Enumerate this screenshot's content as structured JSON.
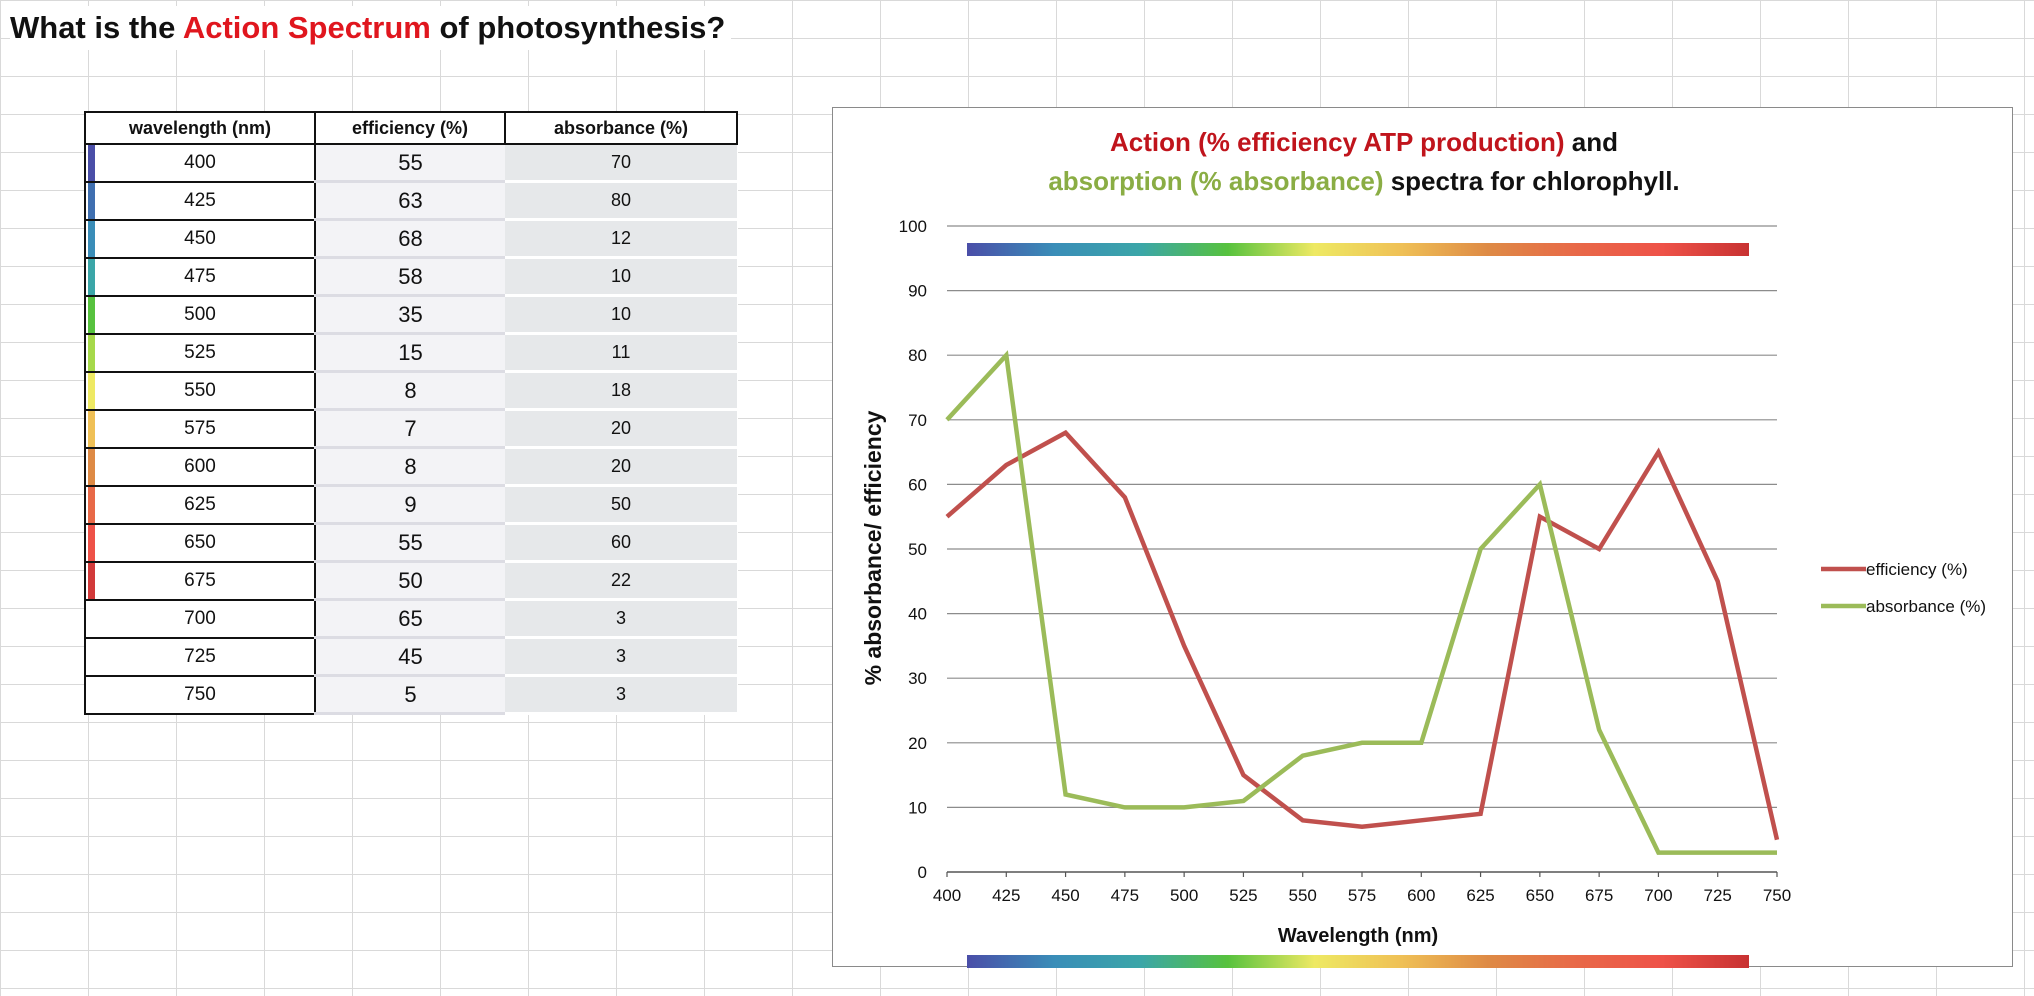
{
  "sheet": {
    "title_part1": "What is the ",
    "title_highlight": "Action Spectrum",
    "title_part2": " of photosynthesis?",
    "highlight_color": "#e0161e"
  },
  "table": {
    "headers": [
      "wavelength (nm)",
      "efficiency (%)",
      "absorbance (%)"
    ],
    "rows": [
      {
        "wavelength": "400",
        "efficiency": "55",
        "absorbance": "70",
        "strip_color": "#4a4ea8"
      },
      {
        "wavelength": "425",
        "efficiency": "63",
        "absorbance": "80",
        "strip_color": "#3f6fb0"
      },
      {
        "wavelength": "450",
        "efficiency": "68",
        "absorbance": "12",
        "strip_color": "#3a8db8"
      },
      {
        "wavelength": "475",
        "efficiency": "58",
        "absorbance": "10",
        "strip_color": "#3ba6a8"
      },
      {
        "wavelength": "500",
        "efficiency": "35",
        "absorbance": "10",
        "strip_color": "#57c23e"
      },
      {
        "wavelength": "525",
        "efficiency": "15",
        "absorbance": "11",
        "strip_color": "#a6d94a"
      },
      {
        "wavelength": "550",
        "efficiency": "8",
        "absorbance": "18",
        "strip_color": "#eee963"
      },
      {
        "wavelength": "575",
        "efficiency": "7",
        "absorbance": "20",
        "strip_color": "#efc056"
      },
      {
        "wavelength": "600",
        "efficiency": "8",
        "absorbance": "20",
        "strip_color": "#de8a45"
      },
      {
        "wavelength": "625",
        "efficiency": "9",
        "absorbance": "50",
        "strip_color": "#e86948"
      },
      {
        "wavelength": "650",
        "efficiency": "55",
        "absorbance": "60",
        "strip_color": "#ee5248"
      },
      {
        "wavelength": "675",
        "efficiency": "50",
        "absorbance": "22",
        "strip_color": "#d23a3a"
      },
      {
        "wavelength": "700",
        "efficiency": "65",
        "absorbance": "3",
        "strip_color": ""
      },
      {
        "wavelength": "725",
        "efficiency": "45",
        "absorbance": "3",
        "strip_color": ""
      },
      {
        "wavelength": "750",
        "efficiency": "5",
        "absorbance": "3",
        "strip_color": ""
      }
    ]
  },
  "chart_data": {
    "type": "line",
    "title_line1": [
      {
        "text": "Action (% efficiency ATP production)",
        "color": "#c0141c"
      },
      {
        "text": " and",
        "color": "#111111"
      }
    ],
    "title_line2": [
      {
        "text": "absorption (% absorbance)",
        "color": "#8aad44"
      },
      {
        "text": " spectra for chlorophyll.",
        "color": "#111111"
      }
    ],
    "xlabel": "Wavelength (nm)",
    "ylabel": "% absorbance/ efficiency",
    "x": [
      400,
      425,
      450,
      475,
      500,
      525,
      550,
      575,
      600,
      625,
      650,
      675,
      700,
      725,
      750
    ],
    "x_ticks": [
      "400",
      "425",
      "450",
      "475",
      "500",
      "525",
      "550",
      "575",
      "600",
      "625",
      "650",
      "675",
      "700",
      "725",
      "750"
    ],
    "y_ticks": [
      "0",
      "10",
      "20",
      "30",
      "40",
      "50",
      "60",
      "70",
      "80",
      "90",
      "100"
    ],
    "xlim": [
      400,
      750
    ],
    "ylim": [
      0,
      100
    ],
    "grid": true,
    "legend_position": "right",
    "series": [
      {
        "name": "efficiency (%)",
        "color": "#c0504d",
        "values": [
          55,
          63,
          68,
          58,
          35,
          15,
          8,
          7,
          8,
          9,
          55,
          50,
          65,
          45,
          5
        ]
      },
      {
        "name": "absorbance (%)",
        "color": "#9bbb59",
        "values": [
          70,
          80,
          12,
          10,
          10,
          11,
          18,
          20,
          20,
          50,
          60,
          22,
          3,
          3,
          3
        ]
      }
    ],
    "spectrum_gradient": [
      "#4a4ea8",
      "#3a8db8",
      "#3ba6a8",
      "#57c23e",
      "#eee963",
      "#efc056",
      "#de8a45",
      "#e86948",
      "#ee5248",
      "#c83232"
    ]
  }
}
